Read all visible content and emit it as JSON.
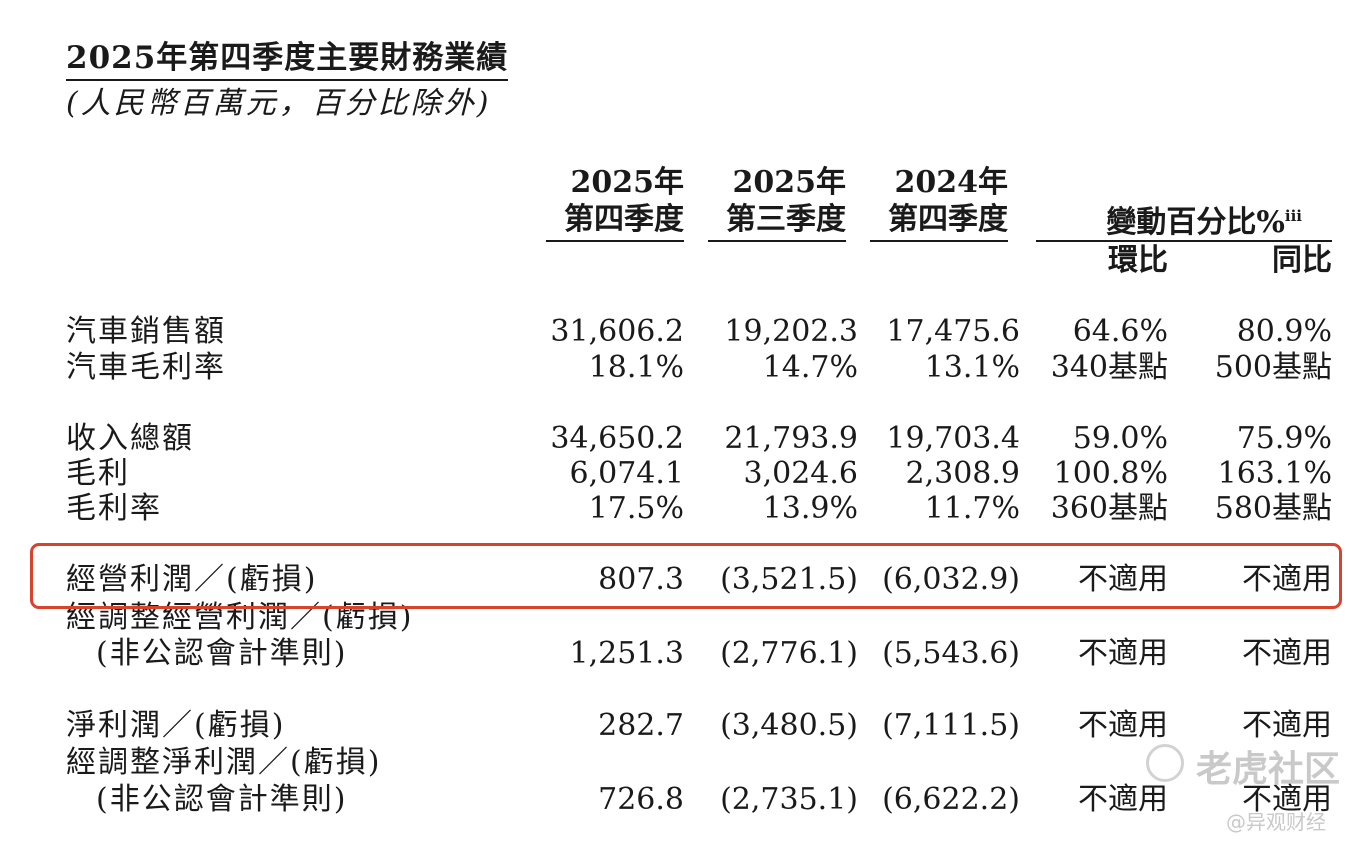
{
  "title": "2025年第四季度主要財務業績",
  "subtitle": "(人民幣百萬元，百分比除外)",
  "columns": {
    "q4_2025": [
      "2025年",
      "第四季度"
    ],
    "q3_2025": [
      "2025年",
      "第三季度"
    ],
    "q4_2024": [
      "2024年",
      "第四季度"
    ],
    "change_header": "變動百分比%",
    "change_sup": "iii",
    "qoq": "環比",
    "yoy": "同比"
  },
  "rows": [
    {
      "label": "汽車銷售額",
      "values": [
        "31,606.2",
        "19,202.3",
        "17,475.6",
        "64.6%",
        "80.9%"
      ]
    },
    {
      "label": "汽車毛利率",
      "values": [
        "18.1%",
        "14.7%",
        "13.1%",
        "340基點",
        "500基點"
      ]
    },
    {
      "label": "收入總額",
      "values": [
        "34,650.2",
        "21,793.9",
        "19,703.4",
        "59.0%",
        "75.9%"
      ]
    },
    {
      "label": "毛利",
      "values": [
        "6,074.1",
        "3,024.6",
        "2,308.9",
        "100.8%",
        "163.1%"
      ]
    },
    {
      "label": "毛利率",
      "values": [
        "17.5%",
        "13.9%",
        "11.7%",
        "360基點",
        "580基點"
      ]
    },
    {
      "label": "經營利潤／(虧損)",
      "values": [
        "807.3",
        "(3,521.5)",
        "(6,032.9)",
        "不適用",
        "不適用"
      ]
    },
    {
      "label": "經調整經營利潤／(虧損)",
      "label2": "(非公認會計準則)",
      "values": [
        "1,251.3",
        "(2,776.1)",
        "(5,543.6)",
        "不適用",
        "不適用"
      ]
    },
    {
      "label": "淨利潤／(虧損)",
      "values": [
        "282.7",
        "(3,480.5)",
        "(7,111.5)",
        "不適用",
        "不適用"
      ]
    },
    {
      "label": "經調整淨利潤／(虧損)",
      "label2": "(非公認會計準則)",
      "values": [
        "726.8",
        "(2,735.1)",
        "(6,622.2)",
        "不適用",
        "不適用"
      ]
    }
  ],
  "watermark": {
    "brand": "老虎社区",
    "handle": "@异观财经"
  },
  "highlight_color": "#d8422f"
}
